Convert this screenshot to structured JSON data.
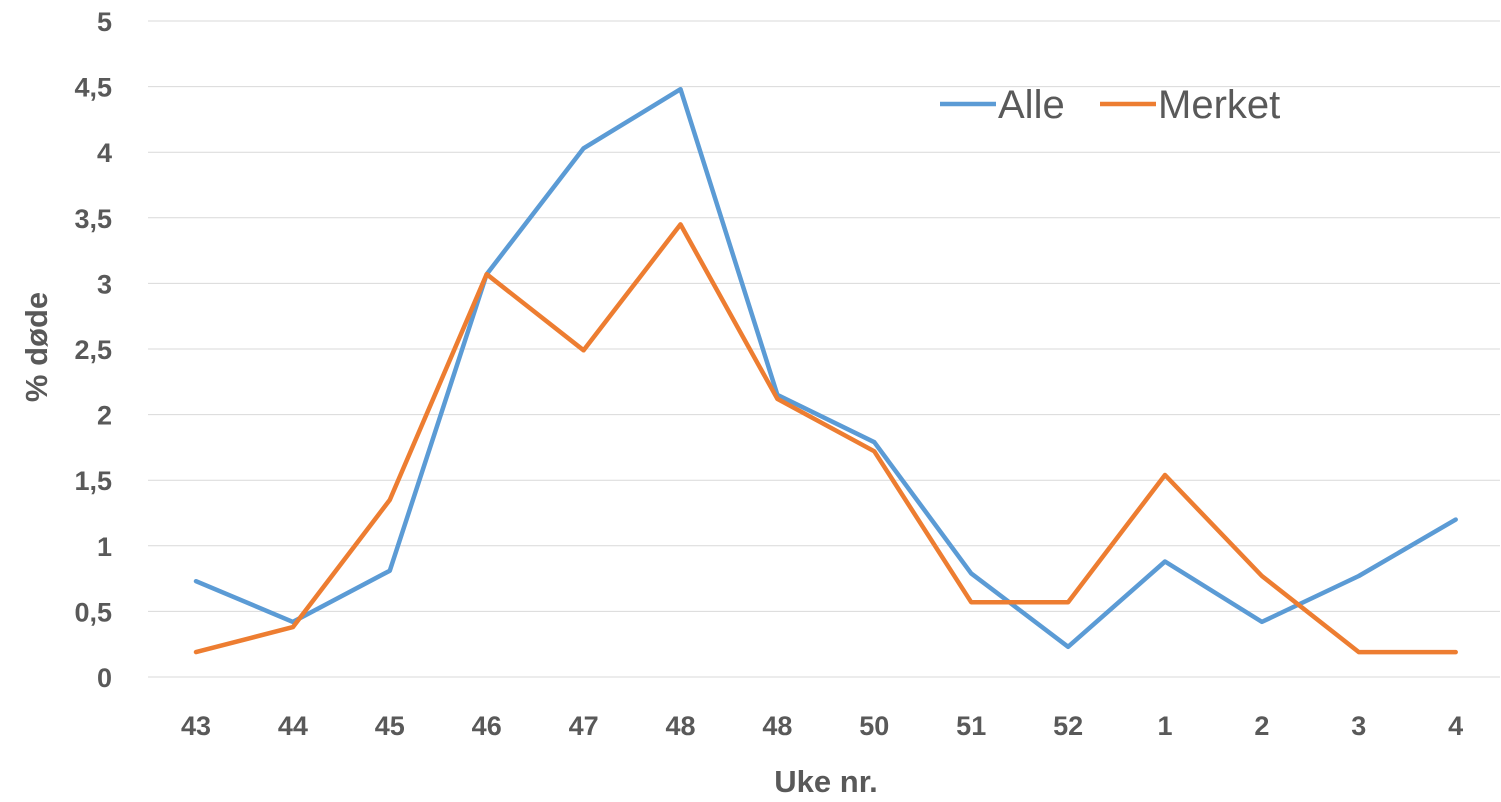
{
  "chart_data": {
    "type": "line",
    "title": "",
    "xlabel": "Uke nr.",
    "ylabel": "% døde",
    "categories": [
      "43",
      "44",
      "45",
      "46",
      "47",
      "48",
      "48",
      "50",
      "51",
      "52",
      "1",
      "2",
      "3",
      "4"
    ],
    "ylim": [
      0,
      5
    ],
    "yticks": [
      0,
      0.5,
      1,
      1.5,
      2,
      2.5,
      3,
      3.5,
      4,
      4.5,
      5
    ],
    "ytick_labels": [
      "0",
      "0,5",
      "1",
      "1,5",
      "2",
      "2,5",
      "3",
      "3,5",
      "4",
      "4,5",
      "5"
    ],
    "grid": true,
    "legend_position": "top-right",
    "series": [
      {
        "name": "Alle",
        "color": "#5b9bd5",
        "values": [
          0.73,
          0.42,
          0.81,
          3.07,
          4.03,
          4.48,
          2.15,
          1.79,
          0.79,
          0.23,
          0.88,
          0.42,
          0.77,
          1.2
        ]
      },
      {
        "name": "Merket",
        "color": "#ed7d31",
        "values": [
          0.19,
          0.38,
          1.35,
          3.07,
          2.49,
          3.45,
          2.12,
          1.72,
          0.57,
          0.57,
          1.54,
          0.77,
          0.19,
          0.19
        ]
      }
    ]
  }
}
